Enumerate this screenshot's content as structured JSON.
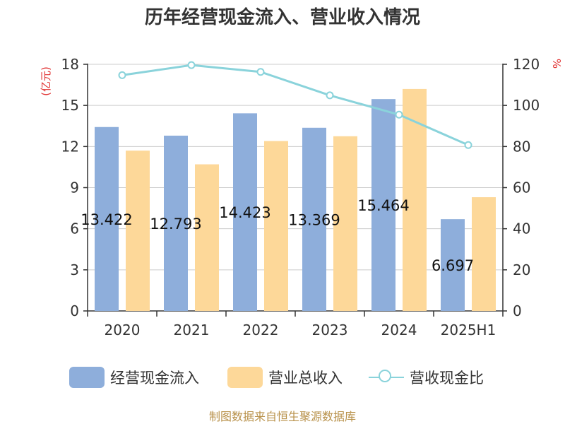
{
  "title": "历年经营现金流入、营业收入情况",
  "footer": "制图数据来自恒生聚源数据库",
  "colors": {
    "cash_inflow": "#8eaedb",
    "revenue": "#fdd899",
    "ratio_line": "#8ad3db",
    "unit_red": "#e03030",
    "axis": "#333333",
    "grid": "#cccccc"
  },
  "chart_data": {
    "type": "bar",
    "categories": [
      "2020",
      "2021",
      "2022",
      "2023",
      "2024",
      "2025H1"
    ],
    "left_axis": {
      "unit": "(亿元)",
      "ylim": [
        0,
        18
      ],
      "ticks": [
        "0",
        "3",
        "6",
        "9",
        "12",
        "15",
        "18"
      ]
    },
    "right_axis": {
      "unit": "%",
      "ylim": [
        0,
        120
      ],
      "ticks": [
        "0",
        "20",
        "40",
        "60",
        "80",
        "100",
        "120"
      ]
    },
    "series": [
      {
        "name": "经营现金流入",
        "type": "bar",
        "axis": "left",
        "values": [
          13.422,
          12.793,
          14.423,
          13.369,
          15.464,
          6.697
        ],
        "labels": [
          "13.422",
          "12.793",
          "14.423",
          "13.369",
          "15.464",
          "6.697"
        ]
      },
      {
        "name": "营业总收入",
        "type": "bar",
        "axis": "left",
        "values": [
          11.7,
          10.7,
          12.4,
          12.75,
          16.2,
          8.3
        ]
      },
      {
        "name": "营收现金比",
        "type": "line",
        "axis": "right",
        "values": [
          114.7,
          119.6,
          116.3,
          104.9,
          95.5,
          80.7
        ]
      }
    ],
    "grid": true,
    "legend_position": "bottom"
  }
}
